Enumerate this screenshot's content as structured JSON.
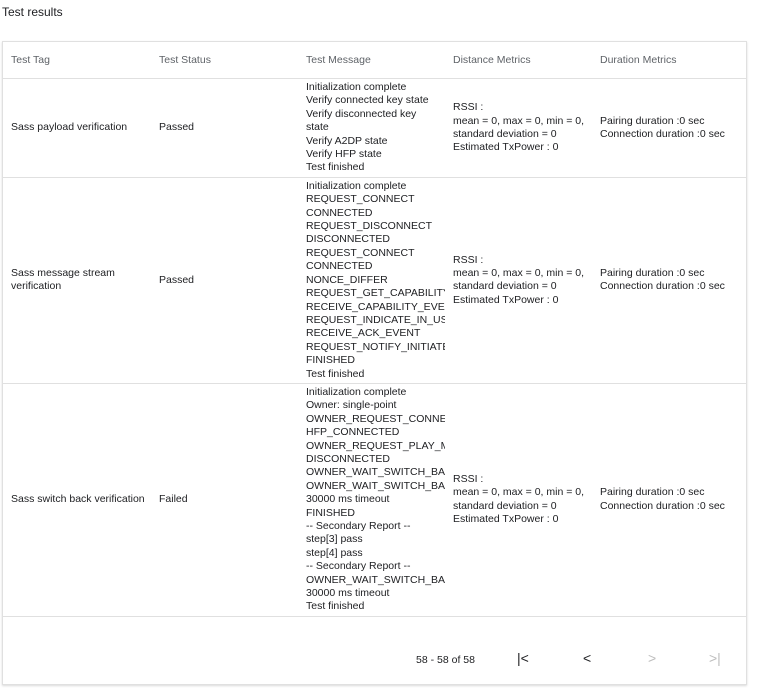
{
  "title": "Test results",
  "columns": [
    "Test Tag",
    "Test Status",
    "Test Message",
    "Distance Metrics",
    "Duration Metrics"
  ],
  "rows": [
    {
      "tag": "Sass payload verification",
      "status": "Passed",
      "message": [
        "Initialization complete",
        "Verify connected key state",
        "Verify disconnected key",
        "state",
        "Verify A2DP state",
        "Verify HFP state",
        "Test finished"
      ],
      "distance": [
        "RSSI :",
        "mean = 0, max = 0, min = 0,",
        "standard deviation = 0",
        "Estimated TxPower : 0"
      ],
      "duration": [
        "Pairing duration :0 sec",
        "Connection duration :0 sec"
      ]
    },
    {
      "tag": "Sass message stream verification",
      "status": "Passed",
      "message": [
        "Initialization complete",
        "REQUEST_CONNECT",
        "CONNECTED",
        "REQUEST_DISCONNECT",
        "DISCONNECTED",
        "REQUEST_CONNECT",
        "CONNECTED",
        "NONCE_DIFFER",
        "REQUEST_GET_CAPABILITY",
        "RECEIVE_CAPABILITY_EVENT",
        "REQUEST_INDICATE_IN_USE_",
        "RECEIVE_ACK_EVENT",
        "REQUEST_NOTIFY_INITIATED_",
        "FINISHED",
        "Test finished"
      ],
      "distance": [
        "RSSI :",
        "mean = 0, max = 0, min = 0,",
        "standard deviation = 0",
        "Estimated TxPower : 0"
      ],
      "duration": [
        "Pairing duration :0 sec",
        "Connection duration :0 sec"
      ]
    },
    {
      "tag": "Sass switch back verification",
      "status": "Failed",
      "message": [
        "Initialization complete",
        "Owner: single-point",
        "OWNER_REQUEST_CONNECT",
        "HFP_CONNECTED",
        "OWNER_REQUEST_PLAY_MEDIA",
        "DISCONNECTED",
        "OWNER_WAIT_SWITCH_BACK",
        "OWNER_WAIT_SWITCH_BACK",
        "30000 ms timeout",
        "FINISHED",
        "-- Secondary Report --",
        "step[3] pass",
        "step[4] pass",
        "-- Secondary Report --",
        "OWNER_WAIT_SWITCH_BACK",
        "30000 ms timeout",
        "Test finished"
      ],
      "distance": [
        "RSSI :",
        "mean = 0, max = 0, min = 0,",
        "standard deviation = 0",
        "Estimated TxPower : 0"
      ],
      "duration": [
        "Pairing duration :0 sec",
        "Connection duration :0 sec"
      ]
    }
  ],
  "pagination": {
    "range": "58 - 58 of 58",
    "first": "|<",
    "prev": "<",
    "next": ">",
    "last": ">|"
  }
}
